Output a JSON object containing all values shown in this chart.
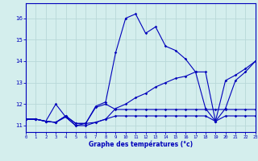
{
  "xlabel": "Graphe des températures (°c)",
  "background_color": "#d4eeed",
  "grid_color": "#b8d8d8",
  "line_color": "#0000bb",
  "hours": [
    0,
    1,
    2,
    3,
    4,
    5,
    6,
    7,
    8,
    9,
    10,
    11,
    12,
    13,
    14,
    15,
    16,
    17,
    18,
    19,
    20,
    21,
    22,
    23
  ],
  "temp_main": [
    11.3,
    11.3,
    11.2,
    12.0,
    11.4,
    11.0,
    11.1,
    11.9,
    12.1,
    14.4,
    16.0,
    16.2,
    15.3,
    15.6,
    14.7,
    14.5,
    14.1,
    13.5,
    11.8,
    11.2,
    11.8,
    13.1,
    13.5,
    14.0
  ],
  "temp_line2": [
    11.3,
    11.3,
    11.2,
    11.15,
    11.4,
    11.0,
    11.0,
    11.15,
    11.3,
    11.8,
    12.0,
    12.3,
    12.5,
    12.8,
    13.0,
    13.2,
    13.3,
    13.5,
    13.5,
    11.2,
    13.1,
    13.35,
    13.65,
    14.0
  ],
  "temp_line3": [
    11.3,
    11.3,
    11.2,
    11.15,
    11.45,
    11.1,
    11.1,
    11.85,
    12.0,
    11.75,
    11.75,
    11.75,
    11.75,
    11.75,
    11.75,
    11.75,
    11.75,
    11.75,
    11.75,
    11.75,
    11.75,
    11.75,
    11.75,
    11.75
  ],
  "temp_line4": [
    11.3,
    11.3,
    11.2,
    11.15,
    11.45,
    11.1,
    11.1,
    11.15,
    11.3,
    11.45,
    11.45,
    11.45,
    11.45,
    11.45,
    11.45,
    11.45,
    11.45,
    11.45,
    11.45,
    11.2,
    11.45,
    11.45,
    11.45,
    11.45
  ],
  "ylim": [
    10.7,
    16.7
  ],
  "xlim": [
    0,
    23
  ],
  "yticks": [
    11,
    12,
    13,
    14,
    15,
    16
  ],
  "xticks": [
    0,
    1,
    2,
    3,
    4,
    5,
    6,
    7,
    8,
    9,
    10,
    11,
    12,
    13,
    14,
    15,
    16,
    17,
    18,
    19,
    20,
    21,
    22,
    23
  ],
  "xtick_labels": [
    "0",
    "1",
    "2",
    "3",
    "4",
    "5",
    "6",
    "7",
    "8",
    "9",
    "10",
    "11",
    "12",
    "13",
    "14",
    "15",
    "16",
    "17",
    "18",
    "19",
    "20",
    "21",
    "22",
    "23"
  ]
}
